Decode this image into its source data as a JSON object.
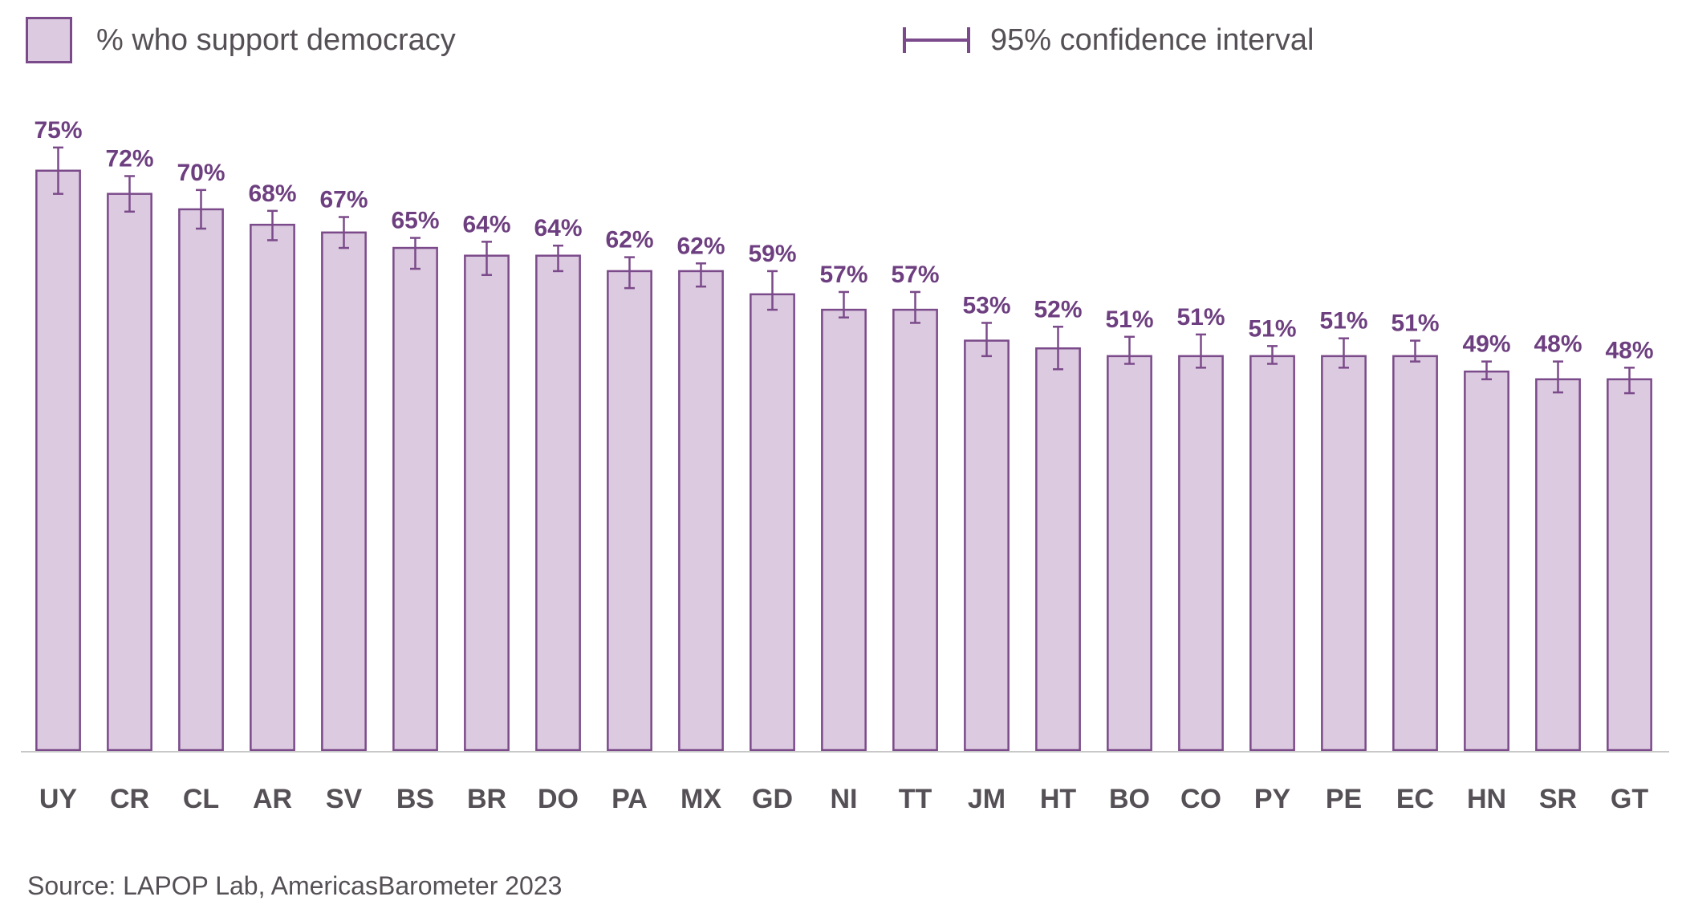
{
  "legend": {
    "bar_label": "% who support democracy",
    "ci_label": "95% confidence interval"
  },
  "source": "Source: LAPOP Lab, AmericasBarometer 2023",
  "colors": {
    "bar_fill": "#dccbe0",
    "bar_stroke": "#7b4a8a",
    "value_text": "#6e3f80",
    "axis_text": "#555055"
  },
  "chart_data": {
    "type": "bar",
    "title": "",
    "xlabel": "",
    "ylabel": "",
    "ylim": [
      0,
      100
    ],
    "grid": false,
    "legend_position": "top",
    "categories": [
      "UY",
      "CR",
      "CL",
      "AR",
      "SV",
      "BS",
      "BR",
      "DO",
      "PA",
      "MX",
      "GD",
      "NI",
      "TT",
      "JM",
      "HT",
      "BO",
      "CO",
      "PY",
      "PE",
      "EC",
      "HN",
      "SR",
      "GT"
    ],
    "series": [
      {
        "name": "% who support democracy",
        "values": [
          75,
          72,
          70,
          68,
          67,
          65,
          64,
          64,
          62,
          62,
          59,
          57,
          57,
          53,
          52,
          51,
          51,
          51,
          51,
          51,
          49,
          48,
          48
        ],
        "value_labels": [
          "75%",
          "72%",
          "70%",
          "68%",
          "67%",
          "65%",
          "64%",
          "64%",
          "62%",
          "62%",
          "59%",
          "57%",
          "57%",
          "53%",
          "52%",
          "51%",
          "51%",
          "51%",
          "51%",
          "51%",
          "49%",
          "48%",
          "48%"
        ],
        "ci_low": [
          72.0,
          69.7,
          67.5,
          66.0,
          65.0,
          62.3,
          61.5,
          62.0,
          59.8,
          60.0,
          57.0,
          56.0,
          55.3,
          51.0,
          49.3,
          50.0,
          49.5,
          50.0,
          49.5,
          50.3,
          48.0,
          46.3,
          46.2
        ],
        "ci_high": [
          78.0,
          74.3,
          72.5,
          69.8,
          69.0,
          66.3,
          65.8,
          65.3,
          63.8,
          63.0,
          62.0,
          59.3,
          59.3,
          55.3,
          54.8,
          53.5,
          53.8,
          52.3,
          53.3,
          53.0,
          50.3,
          50.3,
          49.5
        ]
      }
    ]
  }
}
